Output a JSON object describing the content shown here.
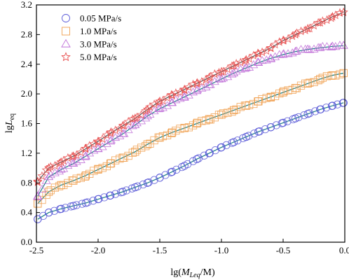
{
  "chart_data": {
    "type": "scatter",
    "xlabel": {
      "prefix": "lg(",
      "var": "M",
      "sub": "Leq",
      "suffix": "/M)"
    },
    "ylabel": {
      "prefix": "lg",
      "var": "L",
      "sub": "eq"
    },
    "xlim": [
      -2.5,
      0.0
    ],
    "ylim": [
      0.0,
      3.2
    ],
    "xticks": [
      -2.5,
      -2.0,
      -1.5,
      -1.0,
      -0.5,
      0.0
    ],
    "xtick_labels": [
      "-2.5",
      "-2.0",
      "-1.5",
      "-1.0",
      "-0.5",
      "0.0"
    ],
    "yticks": [
      0.0,
      0.4,
      0.8,
      1.2,
      1.6,
      2.0,
      2.4,
      2.8,
      3.2
    ],
    "ytick_labels": [
      "0.0",
      "0.4",
      "0.8",
      "1.2",
      "1.6",
      "2.0",
      "2.4",
      "2.8",
      "3.2"
    ],
    "grid": false,
    "legend_position": "top-left",
    "series": [
      {
        "name": "0.05 MPa/s",
        "marker": "circle",
        "color": "#5a5ad8",
        "fit_color": "#1a7f86",
        "x": [
          -2.49,
          -2.4,
          -2.3,
          -2.2,
          -2.1,
          -2.0,
          -1.9,
          -1.8,
          -1.7,
          -1.6,
          -1.5,
          -1.4,
          -1.3,
          -1.2,
          -1.1,
          -1.0,
          -0.9,
          -0.8,
          -0.7,
          -0.6,
          -0.5,
          -0.4,
          -0.3,
          -0.2,
          -0.1,
          -0.01
        ],
        "y": [
          0.31,
          0.4,
          0.45,
          0.49,
          0.53,
          0.58,
          0.63,
          0.68,
          0.74,
          0.8,
          0.87,
          0.95,
          1.03,
          1.12,
          1.2,
          1.28,
          1.35,
          1.42,
          1.49,
          1.55,
          1.61,
          1.67,
          1.73,
          1.79,
          1.84,
          1.88
        ]
      },
      {
        "name": "1.0 MPa/s",
        "marker": "square",
        "color": "#f0a050",
        "fit_color": "#1a7f86",
        "x": [
          -2.49,
          -2.4,
          -2.3,
          -2.2,
          -2.1,
          -2.0,
          -1.9,
          -1.8,
          -1.7,
          -1.6,
          -1.5,
          -1.4,
          -1.3,
          -1.2,
          -1.1,
          -1.0,
          -0.9,
          -0.8,
          -0.7,
          -0.6,
          -0.5,
          -0.4,
          -0.3,
          -0.2,
          -0.1,
          -0.01
        ],
        "y": [
          0.52,
          0.68,
          0.77,
          0.83,
          0.9,
          0.98,
          1.06,
          1.14,
          1.22,
          1.32,
          1.41,
          1.48,
          1.54,
          1.6,
          1.66,
          1.72,
          1.78,
          1.84,
          1.9,
          1.96,
          2.02,
          2.08,
          2.14,
          2.2,
          2.25,
          2.28
        ]
      },
      {
        "name": "3.0 MPa/s",
        "marker": "triangle",
        "color": "#c070d8",
        "fit_color": "#1a7f86",
        "x": [
          -2.49,
          -2.4,
          -2.3,
          -2.2,
          -2.1,
          -2.0,
          -1.9,
          -1.8,
          -1.7,
          -1.6,
          -1.5,
          -1.4,
          -1.3,
          -1.2,
          -1.1,
          -1.0,
          -0.9,
          -0.8,
          -0.7,
          -0.6,
          -0.5,
          -0.4,
          -0.3,
          -0.2,
          -0.1,
          -0.01
        ],
        "y": [
          0.62,
          0.88,
          0.98,
          1.06,
          1.16,
          1.26,
          1.36,
          1.46,
          1.58,
          1.7,
          1.8,
          1.88,
          1.96,
          2.04,
          2.12,
          2.2,
          2.28,
          2.35,
          2.42,
          2.48,
          2.53,
          2.57,
          2.6,
          2.62,
          2.64,
          2.65
        ]
      },
      {
        "name": "5.0 MPa/s",
        "marker": "star",
        "color": "#e85050",
        "fit_color": "#555555",
        "x": [
          -2.49,
          -2.4,
          -2.3,
          -2.2,
          -2.1,
          -2.0,
          -1.9,
          -1.8,
          -1.7,
          -1.6,
          -1.5,
          -1.4,
          -1.3,
          -1.2,
          -1.1,
          -1.0,
          -0.9,
          -0.8,
          -0.7,
          -0.6,
          -0.5,
          -0.4,
          -0.3,
          -0.2,
          -0.1,
          -0.01
        ],
        "y": [
          0.82,
          1.0,
          1.08,
          1.16,
          1.26,
          1.36,
          1.47,
          1.57,
          1.67,
          1.79,
          1.9,
          1.98,
          2.06,
          2.14,
          2.22,
          2.3,
          2.38,
          2.46,
          2.54,
          2.62,
          2.72,
          2.8,
          2.88,
          2.96,
          3.04,
          3.1
        ]
      }
    ]
  }
}
